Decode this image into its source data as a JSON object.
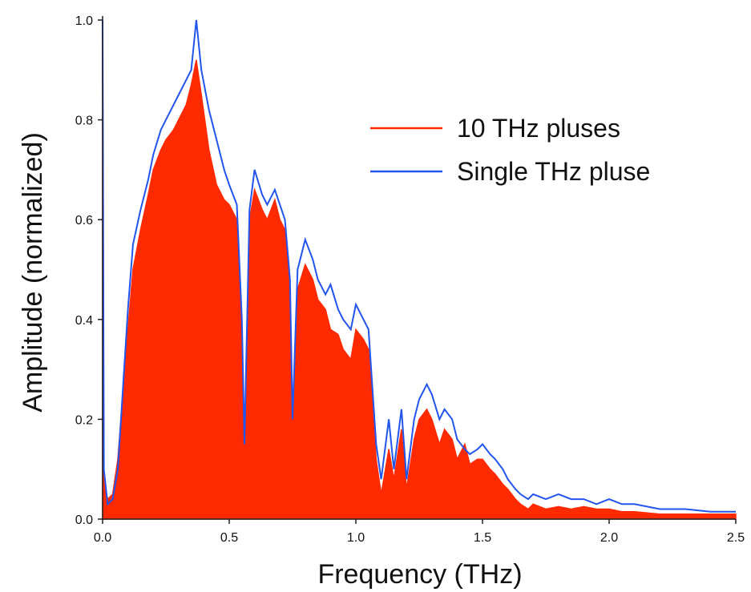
{
  "chart_data": {
    "type": "line",
    "title": "",
    "xlabel": "Frequency (THz)",
    "ylabel": "Amplitude (normalized)",
    "xlim": [
      0,
      2.5
    ],
    "ylim": [
      0,
      1.0
    ],
    "xticks": [
      "0.0",
      "0.5",
      "1.0",
      "1.5",
      "2.0",
      "2.5"
    ],
    "yticks": [
      "0.0",
      "0.2",
      "0.4",
      "0.6",
      "0.8",
      "1.0"
    ],
    "grid": false,
    "legend_position": "top-right",
    "series": [
      {
        "name": "10 THz pluses",
        "color": "#ff2a00",
        "fill": true,
        "x": [
          0.0,
          0.005,
          0.02,
          0.04,
          0.06,
          0.08,
          0.1,
          0.12,
          0.15,
          0.18,
          0.2,
          0.23,
          0.25,
          0.28,
          0.3,
          0.33,
          0.35,
          0.37,
          0.39,
          0.42,
          0.45,
          0.48,
          0.5,
          0.53,
          0.55,
          0.56,
          0.58,
          0.6,
          0.63,
          0.65,
          0.68,
          0.7,
          0.72,
          0.74,
          0.75,
          0.77,
          0.8,
          0.83,
          0.85,
          0.88,
          0.9,
          0.93,
          0.95,
          0.98,
          1.0,
          1.03,
          1.05,
          1.08,
          1.1,
          1.13,
          1.15,
          1.18,
          1.2,
          1.23,
          1.25,
          1.28,
          1.3,
          1.33,
          1.35,
          1.38,
          1.4,
          1.43,
          1.45,
          1.48,
          1.5,
          1.53,
          1.55,
          1.58,
          1.6,
          1.63,
          1.65,
          1.68,
          1.7,
          1.75,
          1.8,
          1.85,
          1.9,
          1.95,
          2.0,
          2.05,
          2.1,
          2.2,
          2.3,
          2.4,
          2.5
        ],
        "y": [
          1.0,
          0.08,
          0.04,
          0.05,
          0.12,
          0.25,
          0.38,
          0.5,
          0.58,
          0.65,
          0.7,
          0.74,
          0.76,
          0.78,
          0.8,
          0.83,
          0.87,
          0.92,
          0.85,
          0.74,
          0.67,
          0.64,
          0.63,
          0.6,
          0.35,
          0.14,
          0.6,
          0.66,
          0.62,
          0.6,
          0.64,
          0.6,
          0.58,
          0.45,
          0.18,
          0.46,
          0.51,
          0.48,
          0.44,
          0.42,
          0.38,
          0.37,
          0.34,
          0.32,
          0.38,
          0.36,
          0.34,
          0.12,
          0.05,
          0.14,
          0.08,
          0.18,
          0.06,
          0.16,
          0.2,
          0.22,
          0.2,
          0.15,
          0.18,
          0.16,
          0.12,
          0.15,
          0.11,
          0.12,
          0.12,
          0.1,
          0.09,
          0.07,
          0.06,
          0.04,
          0.03,
          0.02,
          0.03,
          0.02,
          0.025,
          0.02,
          0.025,
          0.02,
          0.02,
          0.015,
          0.015,
          0.01,
          0.01,
          0.01,
          0.01
        ]
      },
      {
        "name": "Single THz pluse",
        "color": "#2255ee",
        "fill": false,
        "x": [
          0.0,
          0.005,
          0.02,
          0.04,
          0.06,
          0.08,
          0.1,
          0.12,
          0.15,
          0.18,
          0.2,
          0.23,
          0.25,
          0.28,
          0.3,
          0.33,
          0.35,
          0.37,
          0.39,
          0.42,
          0.45,
          0.48,
          0.5,
          0.53,
          0.55,
          0.56,
          0.58,
          0.6,
          0.63,
          0.65,
          0.68,
          0.7,
          0.72,
          0.74,
          0.75,
          0.77,
          0.8,
          0.83,
          0.85,
          0.88,
          0.9,
          0.93,
          0.95,
          0.98,
          1.0,
          1.03,
          1.05,
          1.08,
          1.1,
          1.13,
          1.15,
          1.18,
          1.2,
          1.23,
          1.25,
          1.28,
          1.3,
          1.33,
          1.35,
          1.38,
          1.4,
          1.43,
          1.45,
          1.48,
          1.5,
          1.53,
          1.55,
          1.58,
          1.6,
          1.63,
          1.65,
          1.68,
          1.7,
          1.75,
          1.8,
          1.85,
          1.9,
          1.95,
          2.0,
          2.05,
          2.1,
          2.2,
          2.3,
          2.4,
          2.5
        ],
        "y": [
          1.0,
          0.1,
          0.03,
          0.04,
          0.1,
          0.26,
          0.42,
          0.55,
          0.62,
          0.68,
          0.73,
          0.78,
          0.8,
          0.83,
          0.85,
          0.88,
          0.9,
          1.0,
          0.9,
          0.82,
          0.76,
          0.7,
          0.67,
          0.63,
          0.4,
          0.15,
          0.62,
          0.7,
          0.65,
          0.63,
          0.66,
          0.63,
          0.6,
          0.48,
          0.2,
          0.5,
          0.56,
          0.52,
          0.48,
          0.45,
          0.47,
          0.42,
          0.4,
          0.38,
          0.43,
          0.4,
          0.38,
          0.15,
          0.08,
          0.2,
          0.1,
          0.22,
          0.08,
          0.2,
          0.24,
          0.27,
          0.25,
          0.2,
          0.22,
          0.2,
          0.16,
          0.14,
          0.13,
          0.14,
          0.15,
          0.13,
          0.12,
          0.1,
          0.08,
          0.06,
          0.05,
          0.04,
          0.05,
          0.04,
          0.05,
          0.04,
          0.04,
          0.03,
          0.04,
          0.03,
          0.03,
          0.02,
          0.02,
          0.015,
          0.015
        ]
      }
    ]
  }
}
